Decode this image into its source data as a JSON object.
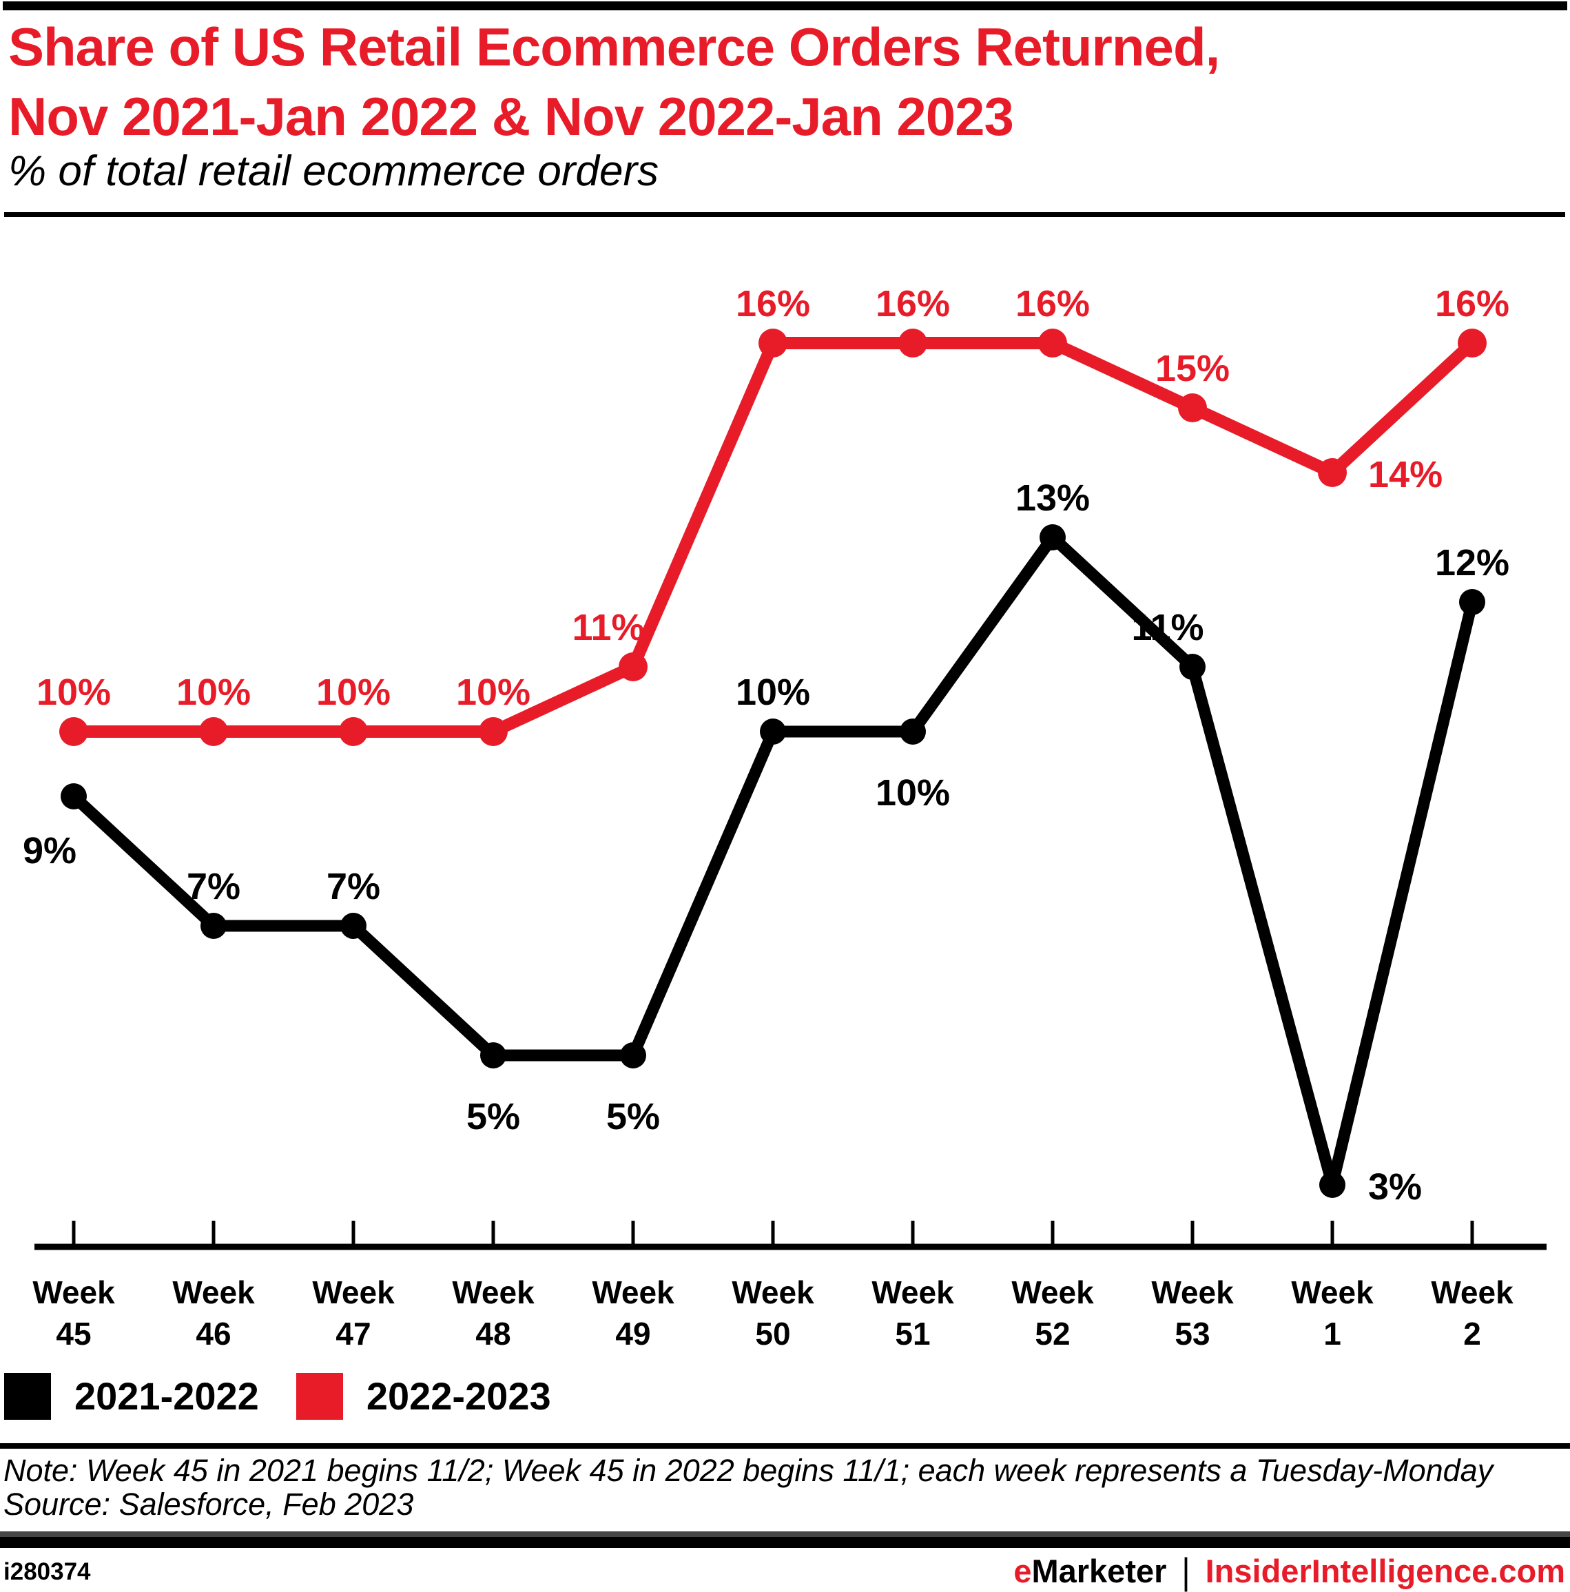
{
  "header": {
    "title_line1": "Share of US Retail Ecommerce Orders Returned,",
    "title_line2": "Nov 2021-Jan 2022 & Nov 2022-Jan 2023",
    "subtitle": "% of total retail ecommerce orders",
    "title_color": "#e81c29"
  },
  "chart_data": {
    "type": "line",
    "categories": [
      "Week 45",
      "Week 46",
      "Week 47",
      "Week 48",
      "Week 49",
      "Week 50",
      "Week 51",
      "Week 52",
      "Week 53",
      "Week 1",
      "Week 2"
    ],
    "category_line1": "Week",
    "category_line2": [
      "45",
      "46",
      "47",
      "48",
      "49",
      "50",
      "51",
      "52",
      "53",
      "1",
      "2"
    ],
    "series": [
      {
        "name": "2021-2022",
        "color": "#000000",
        "values": [
          9,
          7,
          7,
          5,
          5,
          10,
          10,
          13,
          11,
          3,
          12
        ],
        "labels": [
          "9%",
          "7%",
          "7%",
          "5%",
          "5%",
          "10%",
          "10%",
          "13%",
          "11%",
          "3%",
          "12%"
        ],
        "label_pos": [
          "below-left",
          "above",
          "above",
          "below",
          "below",
          "above",
          "below",
          "above",
          "above-left",
          "right",
          "above"
        ]
      },
      {
        "name": "2022-2023",
        "color": "#e81c29",
        "values": [
          10,
          10,
          10,
          10,
          11,
          16,
          16,
          16,
          15,
          14,
          16
        ],
        "labels": [
          "10%",
          "10%",
          "10%",
          "10%",
          "11%",
          "16%",
          "16%",
          "16%",
          "15%",
          "14%",
          "16%"
        ],
        "label_pos": [
          "above",
          "above",
          "above",
          "above",
          "above-left",
          "above",
          "above",
          "above",
          "above",
          "right",
          "above"
        ]
      }
    ],
    "title": "Share of US Retail Ecommerce Orders Returned, Nov 2021-Jan 2022 & Nov 2022-Jan 2023",
    "xlabel": "",
    "ylabel": "% of total retail ecommerce orders",
    "ylim": [
      0,
      18
    ],
    "grid": false,
    "legend_position": "bottom-left",
    "data_labels": true
  },
  "legend": {
    "items": [
      {
        "label": "2021-2022",
        "color": "#000000"
      },
      {
        "label": "2022-2023",
        "color": "#e81c29"
      }
    ]
  },
  "footnote": {
    "note": "Note: Week 45 in 2021 begins 11/2; Week 45 in 2022 begins 11/1; each week represents a Tuesday-Monday",
    "source": "Source: Salesforce, Feb 2023"
  },
  "footer": {
    "chart_id": "i280374",
    "brand_e": "e",
    "brand_marketer": "Marketer",
    "separator": "|",
    "brand_right": "InsiderIntelligence.com",
    "brand_red": "#e81c29"
  }
}
